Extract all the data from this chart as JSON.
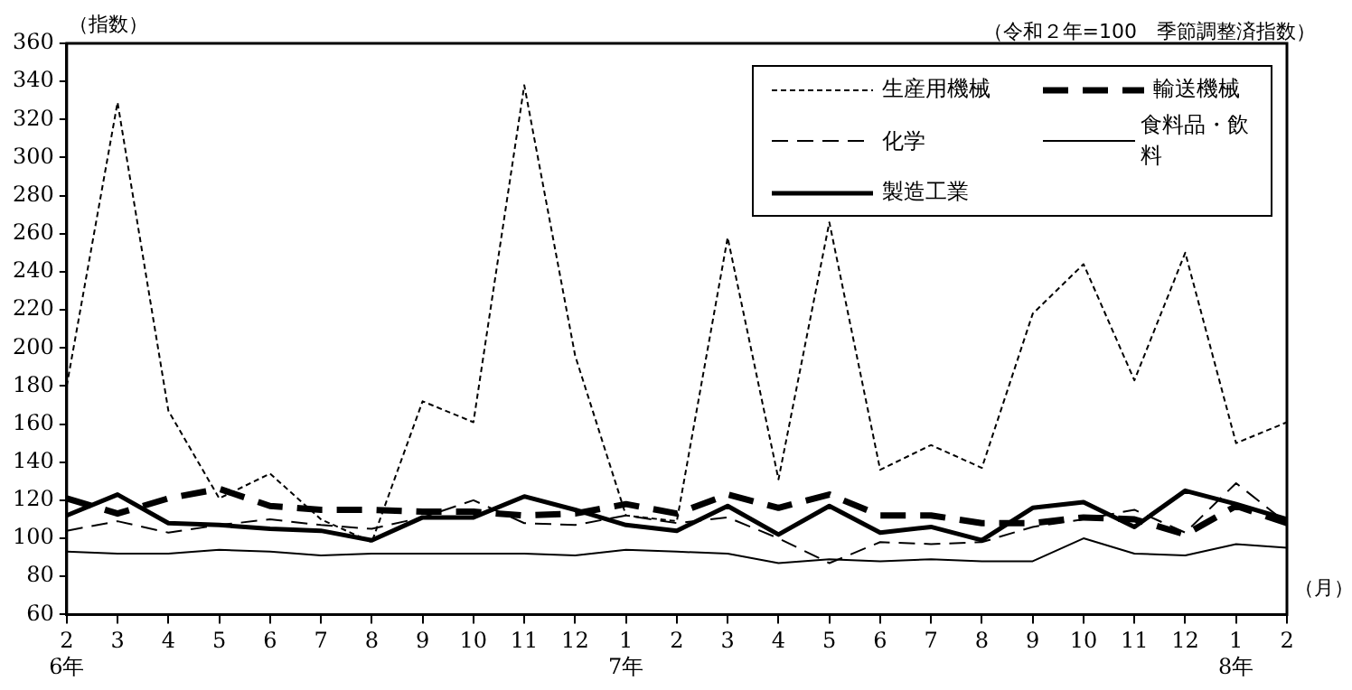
{
  "chart_data": {
    "type": "line",
    "subtitle": "（令和２年=100　季節調整済指数）",
    "ylabel": "（指数）",
    "xlabel": "（月）",
    "categories": [
      "2\n6年",
      "3",
      "4",
      "5",
      "6",
      "7",
      "8",
      "9",
      "10",
      "11",
      "12",
      "1\n7年",
      "2",
      "3",
      "4",
      "5",
      "6",
      "7",
      "8",
      "9",
      "10",
      "11",
      "12",
      "1\n8年",
      "2"
    ],
    "ylim": [
      60,
      360
    ],
    "yticks": [
      60,
      80,
      100,
      120,
      140,
      160,
      180,
      200,
      220,
      240,
      260,
      280,
      300,
      320,
      340,
      360
    ],
    "legend": "top right",
    "marker": "none",
    "series": [
      {
        "name": "生産用機械",
        "color": "#000000",
        "line_style": "dotted",
        "values": [
          180,
          329,
          167,
          121,
          134,
          110,
          98,
          172,
          161,
          338,
          196,
          112,
          109,
          258,
          131,
          266,
          136,
          149,
          137,
          218,
          244,
          183,
          250,
          150,
          161
        ]
      },
      {
        "name": "輸送機械",
        "color": "#000000",
        "line_style": "dashed",
        "values": [
          121,
          113,
          121,
          126,
          117,
          115,
          115,
          114,
          114,
          112,
          113,
          118,
          113,
          123,
          116,
          123,
          112,
          112,
          108,
          108,
          111,
          110,
          102,
          117,
          108
        ]
      },
      {
        "name": "化学",
        "color": "#000000",
        "line_style": "dashed",
        "values": [
          104,
          109,
          103,
          107,
          110,
          107,
          105,
          111,
          120,
          108,
          107,
          112,
          108,
          111,
          100,
          87,
          98,
          97,
          98,
          106,
          110,
          115,
          103,
          129,
          108
        ]
      },
      {
        "name": "食料品・飲料",
        "color": "#000000",
        "line_style": "solid",
        "values": [
          93,
          92,
          92,
          94,
          93,
          91,
          92,
          92,
          92,
          92,
          91,
          94,
          93,
          92,
          87,
          89,
          88,
          89,
          88,
          88,
          100,
          92,
          91,
          97,
          95
        ]
      },
      {
        "name": "製造工業",
        "color": "#000000",
        "line_style": "solid",
        "values": [
          112,
          123,
          108,
          107,
          105,
          104,
          99,
          111,
          111,
          122,
          115,
          107,
          104,
          117,
          102,
          117,
          103,
          106,
          99,
          116,
          119,
          106,
          125,
          118,
          110
        ]
      }
    ]
  }
}
